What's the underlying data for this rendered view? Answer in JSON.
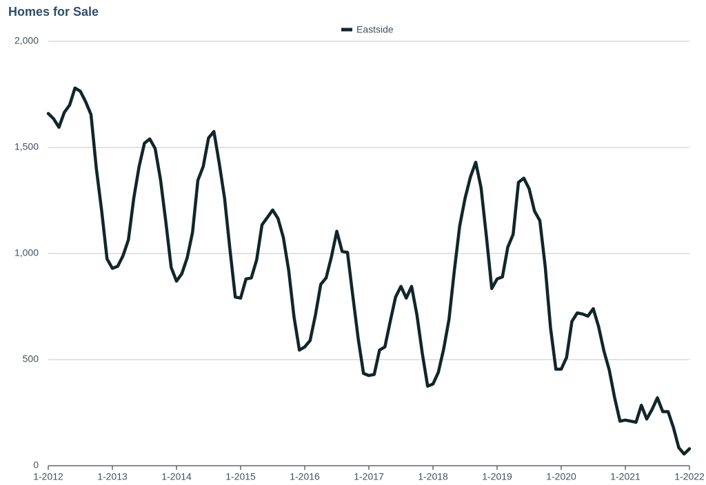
{
  "chart_data": {
    "type": "line",
    "title": "Homes for Sale",
    "categories": [
      "1-2012",
      null,
      null,
      null,
      null,
      null,
      null,
      null,
      null,
      null,
      null,
      null,
      "1-2013",
      null,
      null,
      null,
      null,
      null,
      null,
      null,
      null,
      null,
      null,
      null,
      "1-2014",
      null,
      null,
      null,
      null,
      null,
      null,
      null,
      null,
      null,
      null,
      null,
      "1-2015",
      null,
      null,
      null,
      null,
      null,
      null,
      null,
      null,
      null,
      null,
      null,
      "1-2016",
      null,
      null,
      null,
      null,
      null,
      null,
      null,
      null,
      null,
      null,
      null,
      "1-2017",
      null,
      null,
      null,
      null,
      null,
      null,
      null,
      null,
      null,
      null,
      null,
      "1-2018",
      null,
      null,
      null,
      null,
      null,
      null,
      null,
      null,
      null,
      null,
      null,
      "1-2019",
      null,
      null,
      null,
      null,
      null,
      null,
      null,
      null,
      null,
      null,
      null,
      "1-2020",
      null,
      null,
      null,
      null,
      null,
      null,
      null,
      null,
      null,
      null,
      null,
      "1-2021",
      null,
      null,
      null,
      null,
      null,
      null,
      null,
      null,
      null,
      null,
      null,
      "1-2022"
    ],
    "series": [
      {
        "name": "Eastside",
        "color": "#10262b",
        "values": [
          1660,
          1635,
          1595,
          1665,
          1700,
          1780,
          1765,
          1715,
          1655,
          1400,
          1200,
          975,
          930,
          940,
          990,
          1065,
          1260,
          1410,
          1520,
          1540,
          1495,
          1350,
          1150,
          935,
          870,
          905,
          980,
          1100,
          1345,
          1410,
          1545,
          1575,
          1425,
          1260,
          1020,
          795,
          790,
          880,
          885,
          970,
          1135,
          1170,
          1205,
          1165,
          1075,
          920,
          700,
          545,
          560,
          590,
          710,
          855,
          885,
          985,
          1105,
          1010,
          1005,
          800,
          600,
          435,
          425,
          430,
          545,
          560,
          680,
          795,
          845,
          790,
          845,
          710,
          530,
          375,
          385,
          440,
          550,
          690,
          920,
          1130,
          1260,
          1360,
          1430,
          1310,
          1080,
          835,
          880,
          890,
          1030,
          1090,
          1335,
          1355,
          1305,
          1200,
          1155,
          940,
          650,
          455,
          455,
          510,
          680,
          720,
          715,
          705,
          740,
          655,
          540,
          450,
          320,
          210,
          215,
          210,
          205,
          285,
          220,
          265,
          320,
          255,
          255,
          180,
          85,
          55,
          80
        ]
      }
    ],
    "ylim": [
      0,
      2000
    ],
    "yticks": [
      0,
      500,
      {
        "value": 1000,
        "label": "1,000"
      },
      {
        "value": 1500,
        "label": "1,500"
      },
      {
        "value": 2000,
        "label": "2,000"
      }
    ],
    "grid": true,
    "legend": "top"
  }
}
